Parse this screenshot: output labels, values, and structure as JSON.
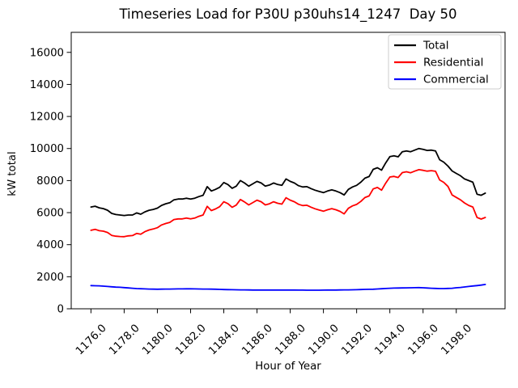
{
  "figure": {
    "title": "Timeseries Load for P30U p30uhs14_1247  Day 50"
  },
  "chart_data": {
    "type": "line",
    "title": "Timeseries Load for P30U p30uhs14_1247  Day 50",
    "xlabel": "Hour of Year",
    "ylabel": "kW total",
    "xlim": [
      1174.8125,
      1200.9375
    ],
    "ylim": [
      0,
      17250
    ],
    "xticks": [
      1176,
      1178,
      1180,
      1182,
      1184,
      1186,
      1188,
      1190,
      1192,
      1194,
      1196,
      1198
    ],
    "xtick_labels": [
      "1176.0",
      "1178.0",
      "1180.0",
      "1182.0",
      "1184.0",
      "1186.0",
      "1188.0",
      "1190.0",
      "1192.0",
      "1194.0",
      "1196.0",
      "1198.0"
    ],
    "yticks": [
      0,
      2000,
      4000,
      6000,
      8000,
      10000,
      12000,
      14000,
      16000
    ],
    "ytick_labels": [
      "0",
      "2000",
      "4000",
      "6000",
      "8000",
      "10000",
      "12000",
      "14000",
      "16000"
    ],
    "grid": false,
    "legend_position": "upper right",
    "x_start": 1176.0,
    "x_step": 0.25,
    "series": [
      {
        "name": "Total",
        "color": "#000000",
        "values": [
          6350,
          6400,
          6300,
          6250,
          6150,
          5950,
          5880,
          5850,
          5820,
          5850,
          5850,
          5980,
          5900,
          6050,
          6150,
          6200,
          6280,
          6450,
          6550,
          6620,
          6800,
          6850,
          6850,
          6900,
          6850,
          6900,
          7000,
          7080,
          7620,
          7350,
          7450,
          7580,
          7880,
          7750,
          7520,
          7650,
          8000,
          7850,
          7650,
          7800,
          7950,
          7850,
          7650,
          7720,
          7850,
          7750,
          7700,
          8100,
          7950,
          7850,
          7680,
          7600,
          7620,
          7500,
          7400,
          7320,
          7250,
          7350,
          7420,
          7350,
          7250,
          7100,
          7450,
          7600,
          7700,
          7900,
          8150,
          8250,
          8700,
          8800,
          8650,
          9100,
          9500,
          9550,
          9480,
          9800,
          9850,
          9800,
          9900,
          10000,
          9950,
          9880,
          9900,
          9850,
          9300,
          9150,
          8900,
          8600,
          8450,
          8300,
          8100,
          8000,
          7900,
          7150,
          7080,
          7220
        ]
      },
      {
        "name": "Residential",
        "color": "#ff0000",
        "values": [
          4900,
          4960,
          4870,
          4840,
          4760,
          4580,
          4530,
          4510,
          4500,
          4550,
          4570,
          4700,
          4650,
          4810,
          4920,
          4980,
          5060,
          5230,
          5320,
          5390,
          5570,
          5610,
          5610,
          5660,
          5610,
          5660,
          5770,
          5850,
          6390,
          6130,
          6230,
          6370,
          6680,
          6560,
          6330,
          6470,
          6820,
          6670,
          6480,
          6630,
          6780,
          6680,
          6480,
          6550,
          6680,
          6580,
          6530,
          6930,
          6780,
          6680,
          6520,
          6440,
          6460,
          6340,
          6240,
          6160,
          6090,
          6180,
          6250,
          6180,
          6080,
          5920,
          6270,
          6420,
          6510,
          6700,
          6940,
          7040,
          7480,
          7570,
          7400,
          7840,
          8220,
          8260,
          8190,
          8500,
          8550,
          8490,
          8590,
          8680,
          8640,
          8590,
          8620,
          8580,
          8040,
          7890,
          7630,
          7100,
          6950,
          6800,
          6600,
          6450,
          6350,
          5700,
          5600,
          5700
        ]
      },
      {
        "name": "Commercial",
        "color": "#0000ff",
        "values": [
          1450,
          1440,
          1430,
          1410,
          1390,
          1370,
          1350,
          1340,
          1320,
          1300,
          1280,
          1260,
          1250,
          1240,
          1230,
          1225,
          1220,
          1225,
          1230,
          1230,
          1235,
          1240,
          1240,
          1245,
          1245,
          1240,
          1235,
          1230,
          1230,
          1225,
          1220,
          1210,
          1200,
          1195,
          1190,
          1185,
          1180,
          1178,
          1175,
          1172,
          1170,
          1170,
          1168,
          1168,
          1168,
          1168,
          1168,
          1170,
          1170,
          1168,
          1165,
          1163,
          1160,
          1160,
          1160,
          1162,
          1165,
          1168,
          1170,
          1172,
          1175,
          1178,
          1180,
          1185,
          1190,
          1200,
          1210,
          1215,
          1220,
          1235,
          1250,
          1265,
          1280,
          1290,
          1295,
          1300,
          1305,
          1310,
          1315,
          1320,
          1310,
          1295,
          1280,
          1270,
          1260,
          1262,
          1270,
          1280,
          1310,
          1330,
          1360,
          1390,
          1420,
          1450,
          1480,
          1520
        ]
      }
    ]
  }
}
